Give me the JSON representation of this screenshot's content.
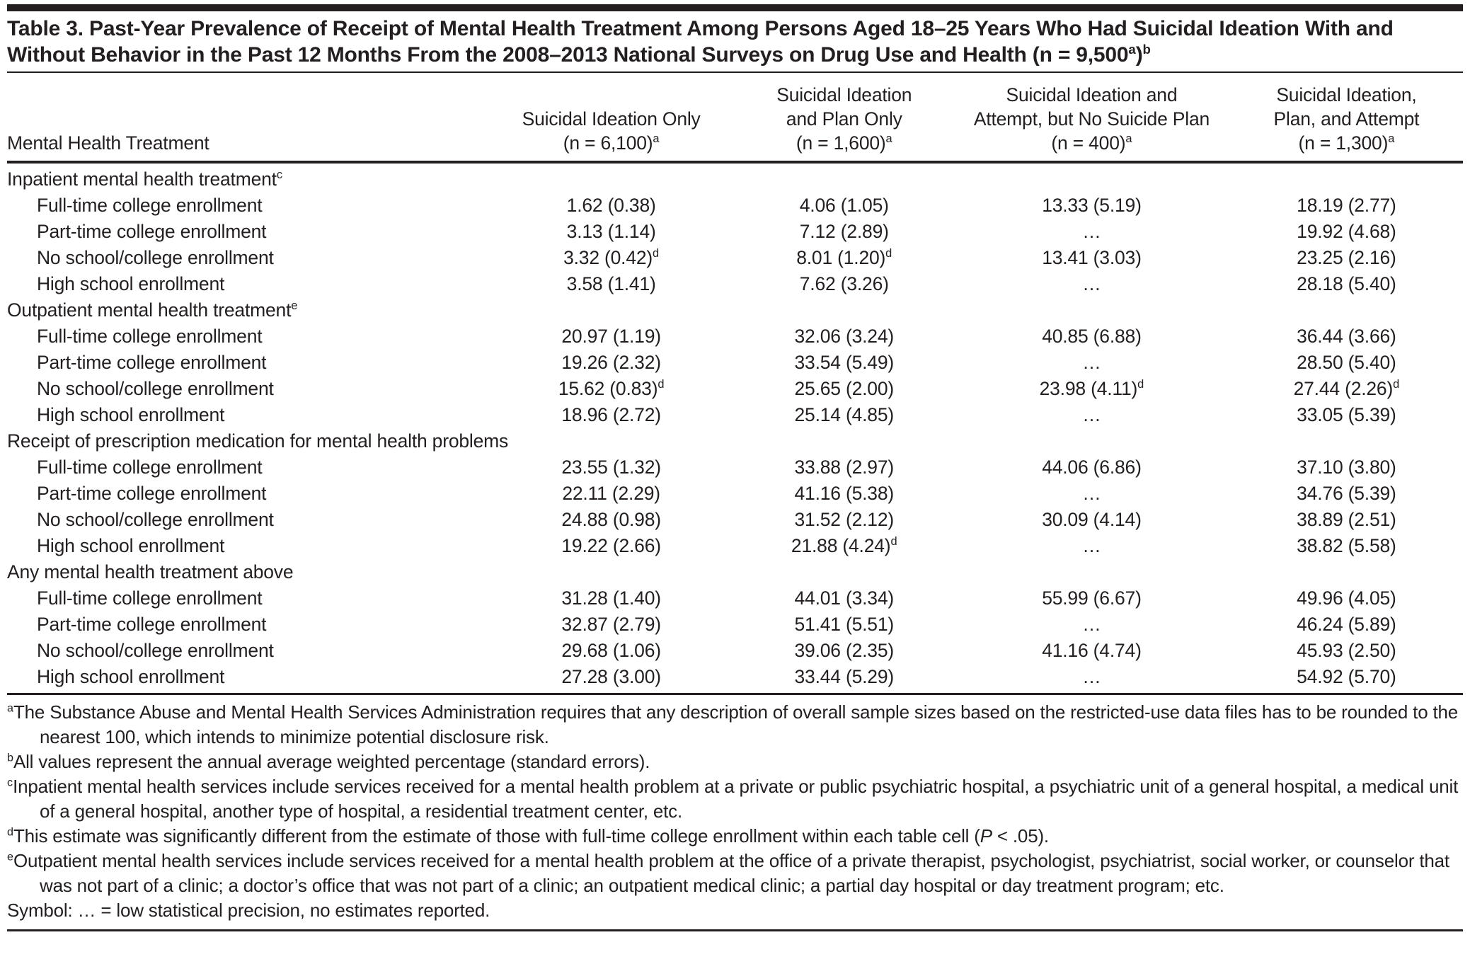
{
  "table": {
    "title_line1": "Table 3. Past-Year Prevalence of Receipt of Mental Health Treatment Among Persons Aged 18–25 Years Who Had Suicidal Ideation",
    "title_line2": "With and Without Behavior in the Past 12 Months From the 2008–2013 National Surveys on Drug Use and Health (n = 9,500^a)^b",
    "stub_header": "Mental Health Treatment",
    "columns": [
      {
        "lines": [
          "Suicidal Ideation Only",
          "(n = 6,100)^a"
        ]
      },
      {
        "lines": [
          "Suicidal Ideation",
          "and Plan Only",
          "(n = 1,600)^a"
        ]
      },
      {
        "lines": [
          "Suicidal Ideation and",
          "Attempt, but No Suicide Plan",
          "(n = 400)^a"
        ]
      },
      {
        "lines": [
          "Suicidal Ideation,",
          "Plan, and Attempt",
          "(n = 1,300)^a"
        ]
      }
    ],
    "sections": [
      {
        "header": "Inpatient mental health treatment^c",
        "rows": [
          {
            "label": "Full-time college enrollment",
            "values": [
              "1.62 (0.38)",
              "4.06 (1.05)",
              "13.33 (5.19)",
              "18.19 (2.77)"
            ]
          },
          {
            "label": "Part-time college enrollment",
            "values": [
              "3.13 (1.14)",
              "7.12 (2.89)",
              "…",
              "19.92 (4.68)"
            ]
          },
          {
            "label": "No school/college enrollment",
            "values": [
              "3.32 (0.42)^d",
              "8.01 (1.20)^d",
              "13.41 (3.03)",
              "23.25 (2.16)"
            ]
          },
          {
            "label": "High school enrollment",
            "values": [
              "3.58 (1.41)",
              "7.62 (3.26)",
              "…",
              "28.18 (5.40)"
            ]
          }
        ]
      },
      {
        "header": "Outpatient mental health treatment^e",
        "rows": [
          {
            "label": "Full-time college enrollment",
            "values": [
              "20.97 (1.19)",
              "32.06 (3.24)",
              "40.85 (6.88)",
              "36.44 (3.66)"
            ]
          },
          {
            "label": "Part-time college enrollment",
            "values": [
              "19.26 (2.32)",
              "33.54 (5.49)",
              "…",
              "28.50 (5.40)"
            ]
          },
          {
            "label": "No school/college enrollment",
            "values": [
              "15.62 (0.83)^d",
              "25.65 (2.00)",
              "23.98 (4.11)^d",
              "27.44 (2.26)^d"
            ]
          },
          {
            "label": "High school enrollment",
            "values": [
              "18.96 (2.72)",
              "25.14 (4.85)",
              "…",
              "33.05 (5.39)"
            ]
          }
        ]
      },
      {
        "header": "Receipt of prescription medication for mental health problems",
        "rows": [
          {
            "label": "Full-time college enrollment",
            "values": [
              "23.55 (1.32)",
              "33.88 (2.97)",
              "44.06 (6.86)",
              "37.10 (3.80)"
            ]
          },
          {
            "label": "Part-time college enrollment",
            "values": [
              "22.11 (2.29)",
              "41.16 (5.38)",
              "…",
              "34.76 (5.39)"
            ]
          },
          {
            "label": "No school/college enrollment",
            "values": [
              "24.88 (0.98)",
              "31.52 (2.12)",
              "30.09 (4.14)",
              "38.89 (2.51)"
            ]
          },
          {
            "label": "High school enrollment",
            "values": [
              "19.22 (2.66)",
              "21.88 (4.24)^d",
              "…",
              "38.82 (5.58)"
            ]
          }
        ]
      },
      {
        "header": "Any mental health treatment above",
        "rows": [
          {
            "label": "Full-time college enrollment",
            "values": [
              "31.28 (1.40)",
              "44.01 (3.34)",
              "55.99 (6.67)",
              "49.96 (4.05)"
            ]
          },
          {
            "label": "Part-time college enrollment",
            "values": [
              "32.87 (2.79)",
              "51.41 (5.51)",
              "…",
              "46.24 (5.89)"
            ]
          },
          {
            "label": "No school/college enrollment",
            "values": [
              "29.68 (1.06)",
              "39.06 (2.35)",
              "41.16 (4.74)",
              "45.93 (2.50)"
            ]
          },
          {
            "label": "High school enrollment",
            "values": [
              "27.28 (3.00)",
              "33.44 (5.29)",
              "…",
              "54.92 (5.70)"
            ]
          }
        ]
      }
    ]
  },
  "footnotes": [
    {
      "marker": "a",
      "text": "The Substance Abuse and Mental Health Services Administration requires that any description of overall sample sizes based on the restricted-use data files has to be rounded to the nearest 100, which intends to minimize potential disclosure risk."
    },
    {
      "marker": "b",
      "text": "All values represent the annual average weighted percentage (standard errors)."
    },
    {
      "marker": "c",
      "text": "Inpatient mental health services include services received for a mental health problem at a private or public psychiatric hospital, a psychiatric unit of a general hospital, a medical unit of a general hospital, another type of hospital, a residential treatment center, etc."
    },
    {
      "marker": "d",
      "text": "This estimate was significantly different from the estimate of those with full-time college enrollment within each table cell (*P* < .05)."
    },
    {
      "marker": "e",
      "text": "Outpatient mental health services include services received for a mental health problem at the office of a private therapist, psychologist, psychiatrist, social worker, or counselor that was not part of a clinic; a doctor’s office that was not part of a clinic; an outpatient medical clinic; a partial day hospital or day treatment program; etc."
    }
  ],
  "symbol_note": "Symbol: … = low statistical precision, no estimates reported."
}
